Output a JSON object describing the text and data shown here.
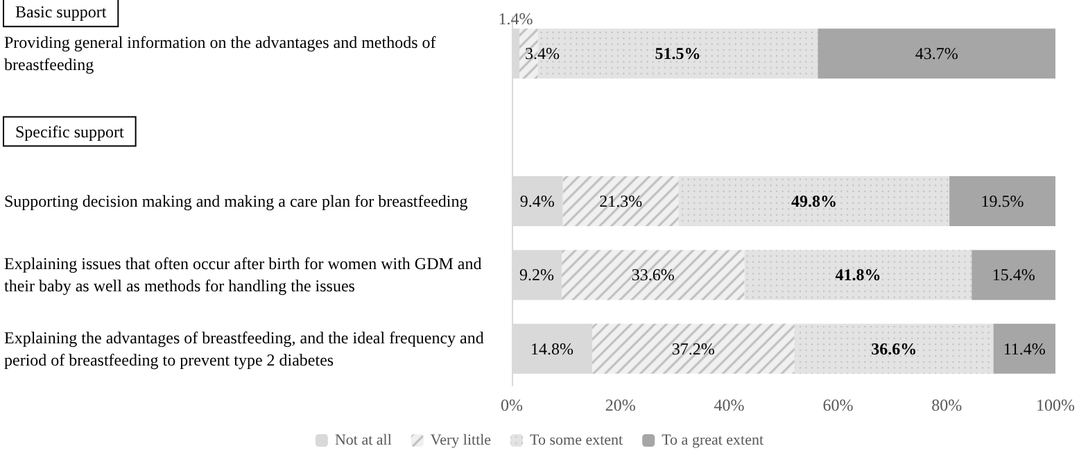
{
  "chart_data": {
    "type": "bar",
    "orientation": "horizontal",
    "stacked": true,
    "categories": [
      "Providing general information on the advantages and methods of breastfeeding",
      null,
      "Supporting decision making and making a care plan for breastfeeding",
      "Explaining issues that often occur after birth for women with GDM and their baby as well as methods for handling the issues",
      "Explaining the advantages of breastfeeding, and the ideal frequency and period of breastfeeding to prevent type 2 diabetes"
    ],
    "series": [
      {
        "name": "Not at all",
        "color": "#d9d9d9",
        "values": [
          1.4,
          null,
          9.4,
          9.2,
          14.8
        ],
        "value_labels": [
          "1.4%",
          null,
          "9.4%",
          "9.2%",
          "14.8%"
        ]
      },
      {
        "name": "Very little",
        "color": "#f0f0f0",
        "values": [
          3.4,
          null,
          21.3,
          33.6,
          37.2
        ],
        "value_labels": [
          "3.4%",
          null,
          "21.3%",
          "33.6%",
          "37.2%"
        ]
      },
      {
        "name": "To some extent",
        "color": "#e3e3e3",
        "values": [
          51.5,
          null,
          49.8,
          41.8,
          36.6
        ],
        "value_labels": [
          "51.5%",
          null,
          "49.8%",
          "41.8%",
          "36.6%"
        ]
      },
      {
        "name": "To a great extent",
        "color": "#a6a6a6",
        "values": [
          43.7,
          null,
          19.5,
          15.4,
          11.4
        ],
        "value_labels": [
          "43.7%",
          null,
          "19.5%",
          "15.4%",
          "11.4%"
        ]
      }
    ],
    "xlim": [
      0,
      100
    ],
    "xticks": [
      {
        "value": 0,
        "label": "0%"
      },
      {
        "value": 20,
        "label": "20%"
      },
      {
        "value": 40,
        "label": "40%"
      },
      {
        "value": 60,
        "label": "60%"
      },
      {
        "value": 80,
        "label": "80%"
      },
      {
        "value": 100,
        "label": "100%"
      }
    ],
    "annotations": [
      "Basic support",
      "Specific support"
    ],
    "legend": "bottom",
    "grid": false
  }
}
